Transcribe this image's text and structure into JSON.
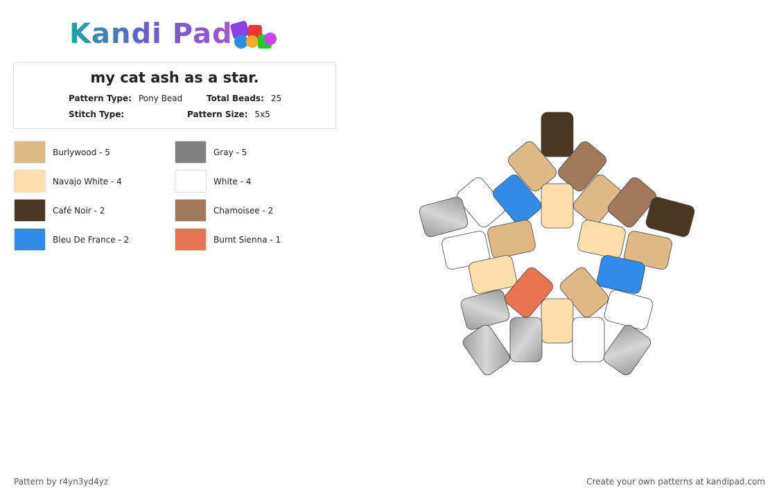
{
  "logo": "Kandi Pad",
  "header": {
    "title": "my cat ash as a star.",
    "fields": [
      {
        "label": "Pattern Type:",
        "value": "Pony Bead"
      },
      {
        "label": "Total Beads:",
        "value": "25"
      },
      {
        "label": "Stitch Type:"
      },
      {
        "label": "Pattern Size:",
        "value": "5x5"
      }
    ]
  },
  "legend": [
    {
      "text": "Burlywood - 5",
      "color": "#deb887"
    },
    {
      "text": "Gray - 5",
      "color": "#808080"
    },
    {
      "text": "Navajo White - 4",
      "color": "#ffdead"
    },
    {
      "text": "White - 4",
      "color": "#ffffff"
    },
    {
      "text": "Café Noir - 2",
      "color": "#4b3621"
    },
    {
      "text": "Chamoisee - 2",
      "color": "#a0785a"
    },
    {
      "text": "Bleu De France - 2",
      "color": "#318ce7"
    },
    {
      "text": "Burnt Sienna - 1",
      "color": "#e97451"
    }
  ],
  "footer": {
    "left": "Pattern by r4yn3yd4yz",
    "right": "Create your own patterns at kandipad.com"
  }
}
